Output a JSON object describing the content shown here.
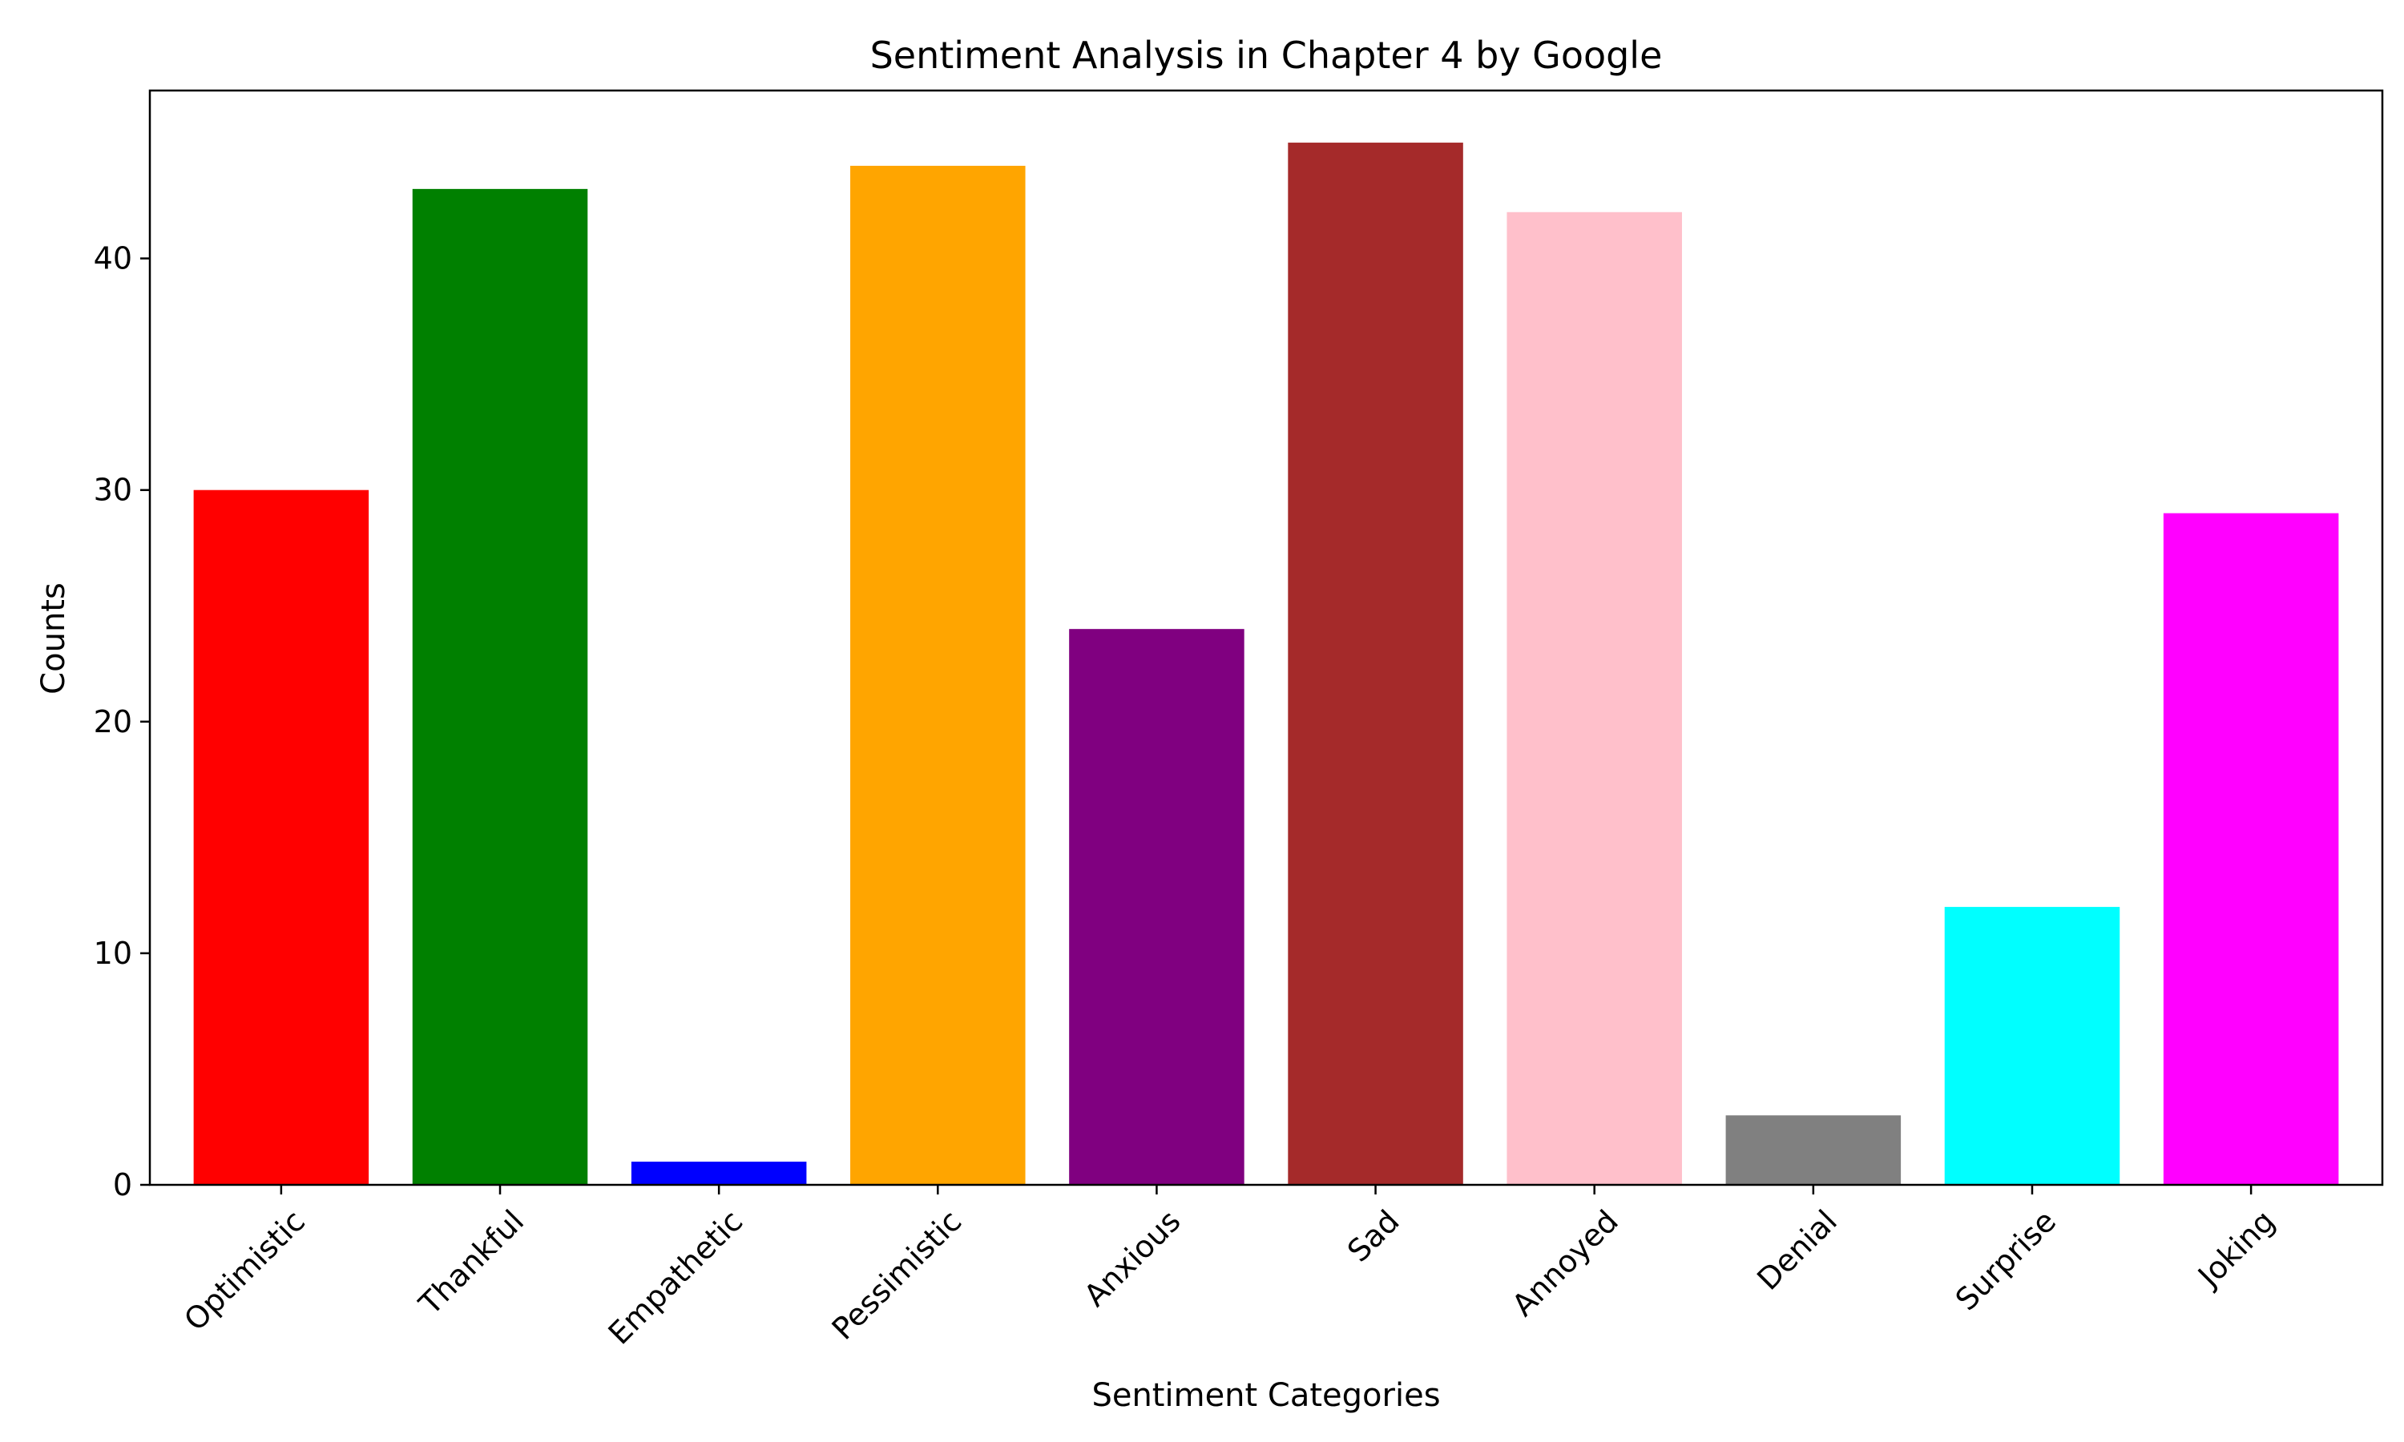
{
  "chart_data": {
    "type": "bar",
    "title": "Sentiment Analysis in Chapter 4 by Google",
    "xlabel": "Sentiment Categories",
    "ylabel": "Counts",
    "categories": [
      "Optimistic",
      "Thankful",
      "Empathetic",
      "Pessimistic",
      "Anxious",
      "Sad",
      "Annoyed",
      "Denial",
      "Surprise",
      "Joking"
    ],
    "values": [
      30,
      43,
      1,
      44,
      24,
      45,
      42,
      3,
      12,
      29
    ],
    "colors": [
      "#ff0000",
      "#008000",
      "#0000ff",
      "#ffa500",
      "#800080",
      "#a52a2a",
      "#ffc0cb",
      "#808080",
      "#00ffff",
      "#ff00ff"
    ],
    "ylim": [
      0,
      47.25
    ],
    "yticks": [
      0,
      10,
      20,
      30,
      40
    ],
    "grid": false,
    "legend": "none"
  }
}
